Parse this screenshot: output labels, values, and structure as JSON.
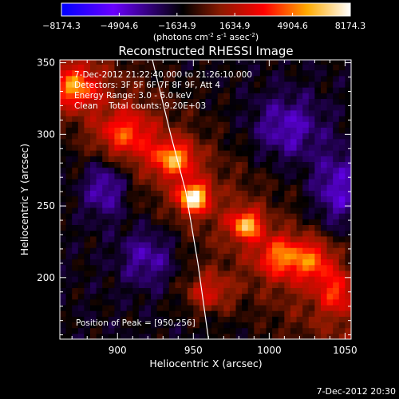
{
  "colorbar": {
    "tick_labels": [
      "−8174.3",
      "−4904.6",
      "−1634.9",
      "1634.9",
      "4904.6",
      "8174.3"
    ],
    "tick_values": [
      -8174.3,
      -4904.6,
      -1634.9,
      1634.9,
      4904.6,
      8174.3
    ],
    "range": [
      -8174.3,
      8174.3
    ],
    "units_text": "(photons cm",
    "units_sup1": "-2",
    "units_mid": " s",
    "units_sup2": "-1",
    "units_end": " asec",
    "units_sup3": "-2",
    "units_close": ")",
    "colormap": [
      "#0000ff",
      "#6a00ff",
      "#000000",
      "#8a1a00",
      "#ff0000",
      "#ffaa00",
      "#ffffff"
    ]
  },
  "annotations": {
    "time_range": "7-Dec-2012 21:22:40.000 to 21:26:10.000",
    "detectors": "Detectors: 3F 5F 6F 7F 8F 9F, Att 4",
    "energy": "Energy Range: 3.0 - 6.0 keV",
    "clean": "Clean    Total counts: 9.20E+03",
    "peak": "Position of Peak = [950,256]"
  },
  "footer": {
    "timestamp": "7-Dec-2012 20:30"
  },
  "chart_data": {
    "type": "heatmap",
    "title": "Reconstructed RHESSI Image",
    "xlabel": "Heliocentric X (arcsec)",
    "ylabel": "Heliocentric Y (arcsec)",
    "xlim": [
      862,
      1054
    ],
    "ylim": [
      157,
      352
    ],
    "x_ticks": [
      900,
      950,
      1000,
      1050
    ],
    "y_ticks": [
      200,
      250,
      300,
      350
    ],
    "x_tick_labels": [
      "900",
      "950",
      "1000",
      "1050"
    ],
    "y_tick_labels": [
      "200",
      "250",
      "300",
      "350"
    ],
    "grid": false,
    "peak_position": [
      950,
      256
    ],
    "sources": [
      {
        "x": 950,
        "y": 256,
        "value": 8174.3,
        "sx": 10,
        "sy": 10
      },
      {
        "x": 937,
        "y": 283,
        "value": 5600,
        "sx": 14,
        "sy": 12
      },
      {
        "x": 985,
        "y": 237,
        "value": 6200,
        "sx": 10,
        "sy": 10
      },
      {
        "x": 1008,
        "y": 215,
        "value": 4500,
        "sx": 15,
        "sy": 14
      },
      {
        "x": 872,
        "y": 333,
        "value": 5200,
        "sx": 14,
        "sy": 14
      },
      {
        "x": 1030,
        "y": 212,
        "value": 4000,
        "sx": 14,
        "sy": 15
      },
      {
        "x": 960,
        "y": 190,
        "value": 3400,
        "sx": 16,
        "sy": 14
      },
      {
        "x": 1045,
        "y": 190,
        "value": 3500,
        "sx": 12,
        "sy": 14
      },
      {
        "x": 905,
        "y": 300,
        "value": 3800,
        "sx": 18,
        "sy": 16
      },
      {
        "x": 892,
        "y": 263,
        "value": -3200,
        "sx": 14,
        "sy": 20
      },
      {
        "x": 920,
        "y": 215,
        "value": -2600,
        "sx": 18,
        "sy": 20
      },
      {
        "x": 1012,
        "y": 305,
        "value": -2800,
        "sx": 22,
        "sy": 22
      },
      {
        "x": 1045,
        "y": 262,
        "value": -3000,
        "sx": 16,
        "sy": 26
      }
    ],
    "limb_curve": [
      [
        923,
        352
      ],
      [
        935,
        300
      ],
      [
        945,
        260
      ],
      [
        953,
        210
      ],
      [
        960,
        157
      ]
    ]
  }
}
